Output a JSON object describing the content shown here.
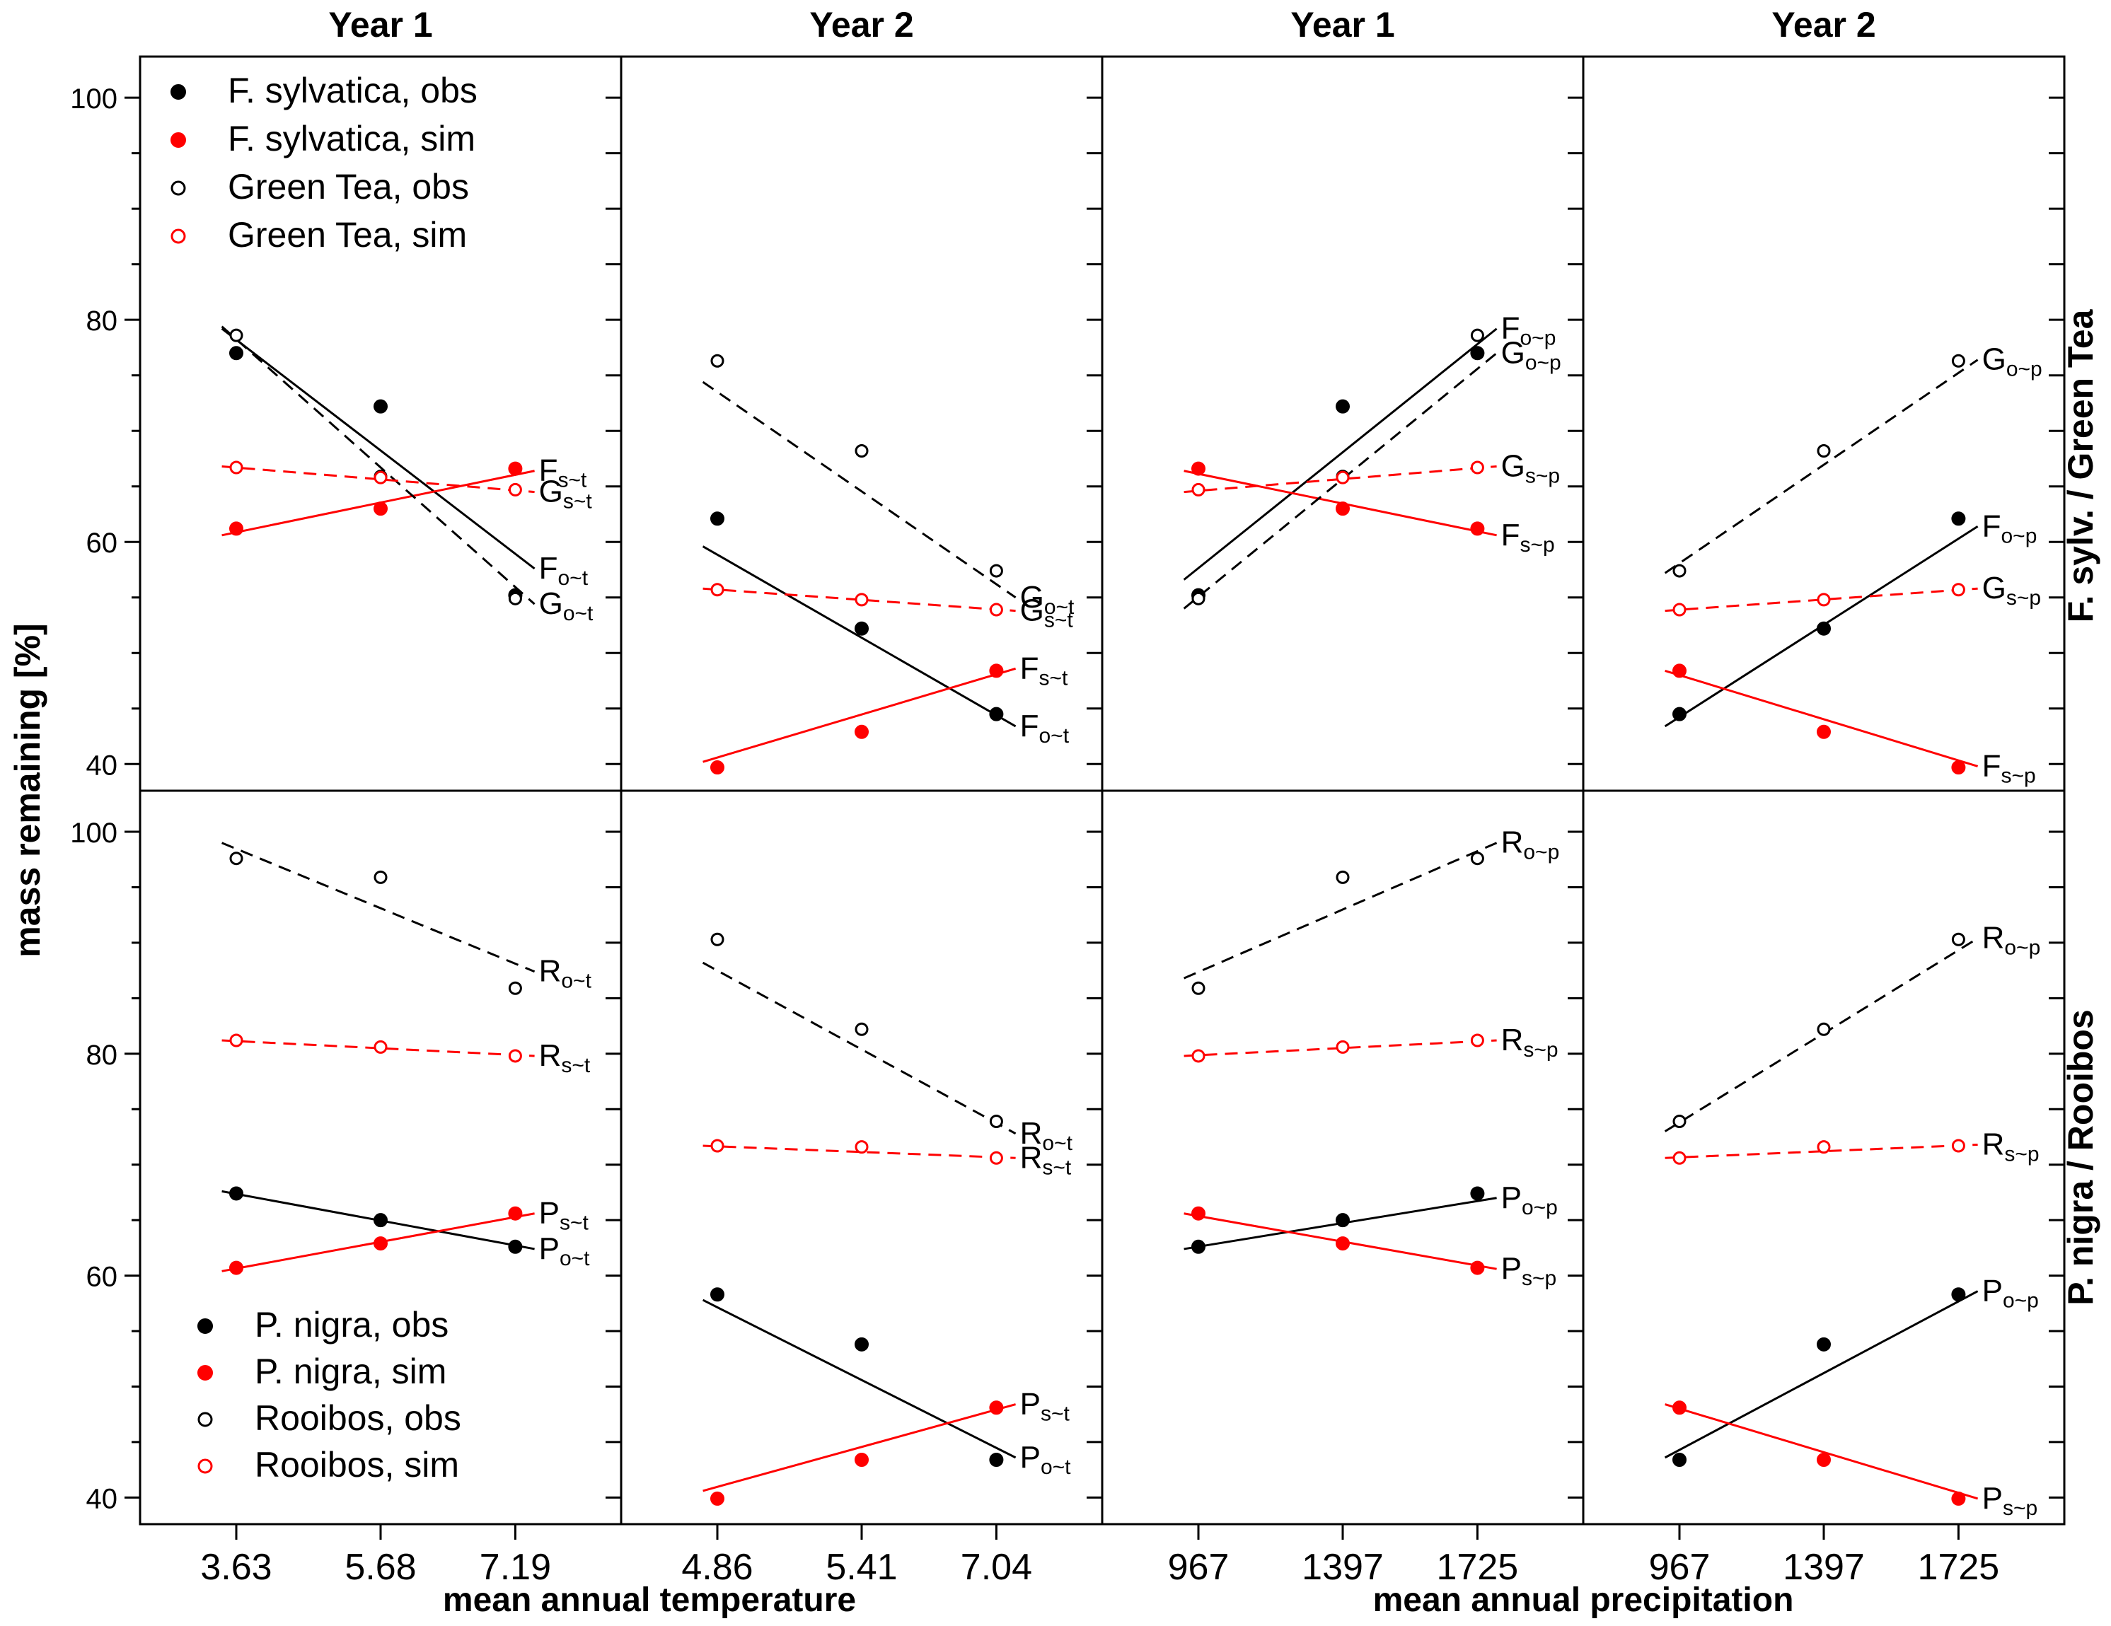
{
  "chart_data": {
    "type": "scatter",
    "panel_titles": [
      "Year 1",
      "Year 2",
      "Year 1",
      "Year 2"
    ],
    "row_titles": [
      "F. sylv. / Green Tea",
      "P. nigra / Rooibos"
    ],
    "ylabel": "mass remaining [%]",
    "xlabels": [
      "mean annual temperature",
      "mean annual precipitation"
    ],
    "y_ticks": [
      "40",
      "60",
      "80",
      "100"
    ],
    "x_ticks": [
      [
        "3.63",
        "5.68",
        "7.19"
      ],
      [
        "4.86",
        "5.41",
        "7.04"
      ],
      [
        "967",
        "1397",
        "1725"
      ],
      [
        "967",
        "1397",
        "1725"
      ]
    ],
    "legends": [
      {
        "position": "top-left",
        "entries": [
          {
            "label": "F. sylvatica, obs",
            "color": "#000000",
            "filled": true
          },
          {
            "label": "F. sylvatica, sim",
            "color": "#ff0000",
            "filled": true
          },
          {
            "label": "Green Tea, obs",
            "color": "#000000",
            "filled": false
          },
          {
            "label": "Green Tea, sim",
            "color": "#ff0000",
            "filled": false
          }
        ]
      },
      {
        "position": "bottom-left",
        "entries": [
          {
            "label": "P. nigra, obs",
            "color": "#000000",
            "filled": true
          },
          {
            "label": "P. nigra, sim",
            "color": "#ff0000",
            "filled": true
          },
          {
            "label": "Rooibos, obs",
            "color": "#000000",
            "filled": false
          },
          {
            "label": "Rooibos, sim",
            "color": "#ff0000",
            "filled": false
          }
        ]
      }
    ],
    "panels": [
      {
        "row": 0,
        "col": 0,
        "series": [
          {
            "name": "F. sylvatica, obs",
            "values": [
              77.0,
              72.2,
              55.2
            ],
            "filled": true,
            "color": "#000000",
            "dash": false,
            "fit": [
              79.2,
              57.6
            ],
            "fit_label": [
              "F",
              "o~t"
            ]
          },
          {
            "name": "F. sylvatica, sim",
            "values": [
              61.2,
              63.0,
              66.6
            ],
            "filled": true,
            "color": "#ff0000",
            "dash": false,
            "fit": [
              60.6,
              66.4
            ],
            "fit_label": [
              "F",
              "s~t"
            ]
          },
          {
            "name": "Green Tea, obs",
            "values": [
              78.6,
              65.9,
              54.9
            ],
            "filled": false,
            "color": "#000000",
            "dash": true,
            "fit": [
              79.4,
              54.4
            ],
            "fit_label": [
              "G",
              "o~t"
            ]
          },
          {
            "name": "Green Tea, sim",
            "values": [
              66.7,
              65.8,
              64.7
            ],
            "filled": false,
            "color": "#ff0000",
            "dash": true,
            "fit": [
              66.8,
              64.5
            ],
            "fit_label": [
              "G",
              "s~t"
            ]
          }
        ]
      },
      {
        "row": 0,
        "col": 1,
        "series": [
          {
            "name": "F. sylvatica, obs",
            "values": [
              62.1,
              52.2,
              44.5
            ],
            "filled": true,
            "color": "#000000",
            "dash": false,
            "fit": [
              59.6,
              43.4
            ],
            "fit_label": [
              "F",
              "o~t"
            ]
          },
          {
            "name": "F. sylvatica, sim",
            "values": [
              39.7,
              42.9,
              48.4
            ],
            "filled": true,
            "color": "#ff0000",
            "dash": false,
            "fit": [
              40.2,
              48.6
            ],
            "fit_label": [
              "F",
              "s~t"
            ]
          },
          {
            "name": "Green Tea, obs",
            "values": [
              76.3,
              68.2,
              57.4
            ],
            "filled": false,
            "color": "#000000",
            "dash": true,
            "fit": [
              74.4,
              55.0
            ],
            "fit_label": [
              "G",
              "o~t"
            ]
          },
          {
            "name": "Green Tea, sim",
            "values": [
              55.7,
              54.8,
              53.9
            ],
            "filled": false,
            "color": "#ff0000",
            "dash": true,
            "fit": [
              55.8,
              53.8
            ],
            "fit_label": [
              "G",
              "s~t"
            ]
          }
        ]
      },
      {
        "row": 0,
        "col": 2,
        "series": [
          {
            "name": "F. sylvatica, obs",
            "values": [
              55.2,
              72.2,
              77.0
            ],
            "filled": true,
            "color": "#000000",
            "dash": false,
            "fit": [
              56.6,
              79.2
            ],
            "fit_label": [
              "F",
              "o~p"
            ]
          },
          {
            "name": "F. sylvatica, sim",
            "values": [
              66.6,
              63.0,
              61.2
            ],
            "filled": true,
            "color": "#ff0000",
            "dash": false,
            "fit": [
              66.4,
              60.6
            ],
            "fit_label": [
              "F",
              "s~p"
            ]
          },
          {
            "name": "Green Tea, obs",
            "values": [
              54.9,
              65.9,
              78.6
            ],
            "filled": false,
            "color": "#000000",
            "dash": true,
            "fit": [
              54.0,
              77.0
            ],
            "fit_label": [
              "G",
              "o~p"
            ]
          },
          {
            "name": "Green Tea, sim",
            "values": [
              64.7,
              65.8,
              66.7
            ],
            "filled": false,
            "color": "#ff0000",
            "dash": true,
            "fit": [
              64.5,
              66.8
            ],
            "fit_label": [
              "G",
              "s~p"
            ]
          }
        ]
      },
      {
        "row": 0,
        "col": 3,
        "series": [
          {
            "name": "F. sylvatica, obs",
            "values": [
              44.5,
              52.2,
              62.1
            ],
            "filled": true,
            "color": "#000000",
            "dash": false,
            "fit": [
              43.4,
              61.4
            ],
            "fit_label": [
              "F",
              "o~p"
            ]
          },
          {
            "name": "F. sylvatica, sim",
            "values": [
              48.4,
              42.9,
              39.7
            ],
            "filled": true,
            "color": "#ff0000",
            "dash": false,
            "fit": [
              48.4,
              39.8
            ],
            "fit_label": [
              "F",
              "s~p"
            ]
          },
          {
            "name": "Green Tea, obs",
            "values": [
              57.4,
              68.2,
              76.3
            ],
            "filled": false,
            "color": "#000000",
            "dash": true,
            "fit": [
              57.2,
              76.4
            ],
            "fit_label": [
              "G",
              "o~p"
            ]
          },
          {
            "name": "Green Tea, sim",
            "values": [
              53.9,
              54.8,
              55.7
            ],
            "filled": false,
            "color": "#ff0000",
            "dash": true,
            "fit": [
              53.8,
              55.8
            ],
            "fit_label": [
              "G",
              "s~p"
            ]
          }
        ]
      },
      {
        "row": 1,
        "col": 0,
        "series": [
          {
            "name": "P. nigra, obs",
            "values": [
              67.4,
              65.0,
              62.6
            ],
            "filled": true,
            "color": "#000000",
            "dash": false,
            "fit": [
              67.6,
              62.4
            ],
            "fit_label": [
              "P",
              "o~t"
            ]
          },
          {
            "name": "P. nigra, sim",
            "values": [
              60.7,
              62.9,
              65.6
            ],
            "filled": true,
            "color": "#ff0000",
            "dash": false,
            "fit": [
              60.4,
              65.6
            ],
            "fit_label": [
              "P",
              "s~t"
            ]
          },
          {
            "name": "Rooibos, obs",
            "values": [
              97.6,
              95.9,
              85.9
            ],
            "filled": false,
            "color": "#000000",
            "dash": true,
            "fit": [
              99.0,
              87.4
            ],
            "fit_label": [
              "R",
              "o~t"
            ]
          },
          {
            "name": "Rooibos, sim",
            "values": [
              81.2,
              80.6,
              79.8
            ],
            "filled": false,
            "color": "#ff0000",
            "dash": true,
            "fit": [
              81.2,
              79.8
            ],
            "fit_label": [
              "R",
              "s~t"
            ]
          }
        ]
      },
      {
        "row": 1,
        "col": 1,
        "series": [
          {
            "name": "P. nigra, obs",
            "values": [
              58.3,
              53.8,
              43.4
            ],
            "filled": true,
            "color": "#000000",
            "dash": false,
            "fit": [
              57.8,
              43.6
            ],
            "fit_label": [
              "P",
              "o~t"
            ]
          },
          {
            "name": "P. nigra, sim",
            "values": [
              39.9,
              43.4,
              48.1
            ],
            "filled": true,
            "color": "#ff0000",
            "dash": false,
            "fit": [
              40.6,
              48.4
            ],
            "fit_label": [
              "P",
              "s~t"
            ]
          },
          {
            "name": "Rooibos, obs",
            "values": [
              90.3,
              82.2,
              73.9
            ],
            "filled": false,
            "color": "#000000",
            "dash": true,
            "fit": [
              88.2,
              72.8
            ],
            "fit_label": [
              "R",
              "o~t"
            ]
          },
          {
            "name": "Rooibos, sim",
            "values": [
              71.7,
              71.6,
              70.6
            ],
            "filled": false,
            "color": "#ff0000",
            "dash": true,
            "fit": [
              71.7,
              70.6
            ],
            "fit_label": [
              "R",
              "s~t"
            ]
          }
        ]
      },
      {
        "row": 1,
        "col": 2,
        "series": [
          {
            "name": "P. nigra, obs",
            "values": [
              62.6,
              65.0,
              67.4
            ],
            "filled": true,
            "color": "#000000",
            "dash": false,
            "fit": [
              62.4,
              67.0
            ],
            "fit_label": [
              "P",
              "o~p"
            ]
          },
          {
            "name": "P. nigra, sim",
            "values": [
              65.6,
              62.9,
              60.7
            ],
            "filled": true,
            "color": "#ff0000",
            "dash": false,
            "fit": [
              65.6,
              60.6
            ],
            "fit_label": [
              "P",
              "s~p"
            ]
          },
          {
            "name": "Rooibos, obs",
            "values": [
              85.9,
              95.9,
              97.6
            ],
            "filled": false,
            "color": "#000000",
            "dash": true,
            "fit": [
              86.8,
              99.0
            ],
            "fit_label": [
              "R",
              "o~p"
            ]
          },
          {
            "name": "Rooibos, sim",
            "values": [
              79.8,
              80.6,
              81.2
            ],
            "filled": false,
            "color": "#ff0000",
            "dash": true,
            "fit": [
              79.8,
              81.2
            ],
            "fit_label": [
              "R",
              "s~p"
            ]
          }
        ]
      },
      {
        "row": 1,
        "col": 3,
        "series": [
          {
            "name": "P. nigra, obs",
            "values": [
              43.4,
              53.8,
              58.3
            ],
            "filled": true,
            "color": "#000000",
            "dash": false,
            "fit": [
              43.6,
              58.6
            ],
            "fit_label": [
              "P",
              "o~p"
            ]
          },
          {
            "name": "P. nigra, sim",
            "values": [
              48.1,
              43.4,
              39.9
            ],
            "filled": true,
            "color": "#ff0000",
            "dash": false,
            "fit": [
              48.4,
              39.9
            ],
            "fit_label": [
              "P",
              "s~p"
            ]
          },
          {
            "name": "Rooibos, obs",
            "values": [
              73.9,
              82.2,
              90.3
            ],
            "filled": false,
            "color": "#000000",
            "dash": true,
            "fit": [
              73.0,
              90.4
            ],
            "fit_label": [
              "R",
              "o~p"
            ]
          },
          {
            "name": "Rooibos, sim",
            "values": [
              70.6,
              71.6,
              71.7
            ],
            "filled": false,
            "color": "#ff0000",
            "dash": true,
            "fit": [
              70.6,
              71.8
            ],
            "fit_label": [
              "R",
              "s~p"
            ]
          }
        ]
      }
    ]
  }
}
